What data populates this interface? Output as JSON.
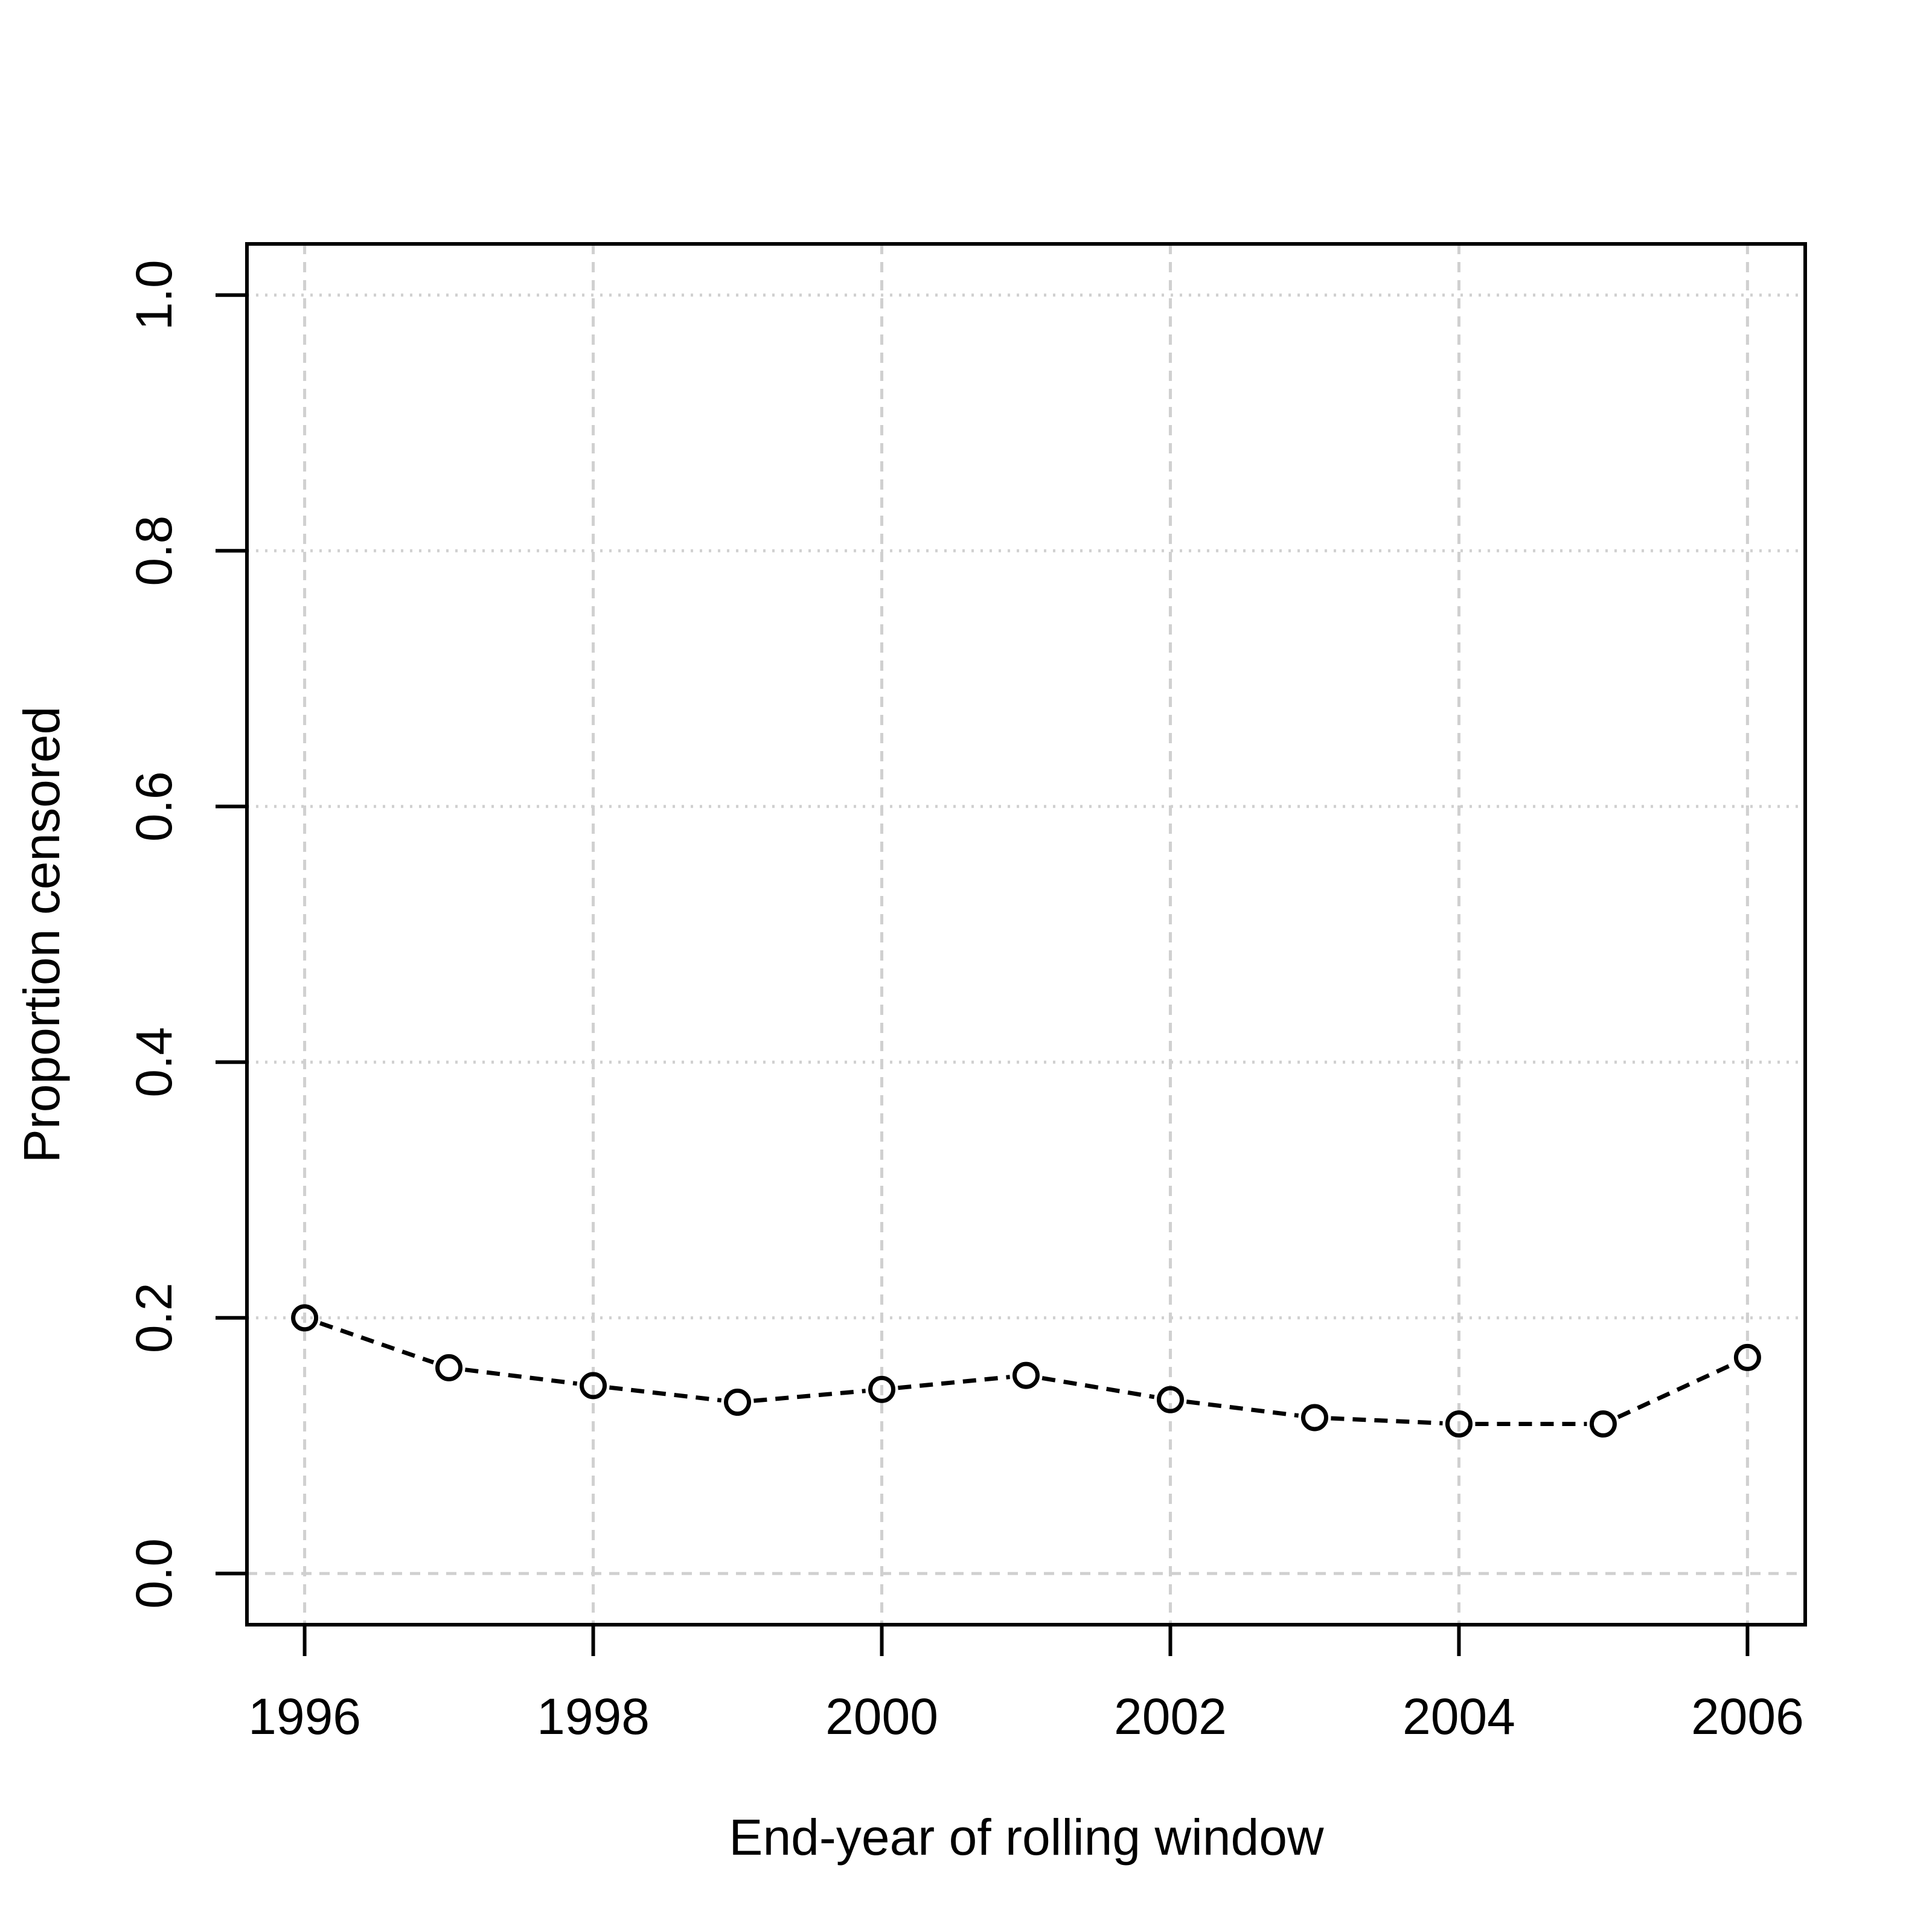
{
  "chart_data": {
    "type": "line",
    "title": "",
    "xlabel": "End-year of rolling window",
    "ylabel": "Proportion censored",
    "x": [
      1996,
      1997,
      1998,
      1999,
      2000,
      2001,
      2002,
      2003,
      2004,
      2005,
      2006
    ],
    "values": [
      0.2,
      0.161,
      0.147,
      0.134,
      0.144,
      0.155,
      0.136,
      0.122,
      0.117,
      0.117,
      0.169
    ],
    "x_ticks": [
      1996,
      1998,
      2000,
      2002,
      2004,
      2006
    ],
    "x_tick_labels": [
      "1996",
      "1998",
      "2000",
      "2002",
      "2004",
      "2006"
    ],
    "y_ticks": [
      0.0,
      0.2,
      0.4,
      0.6,
      0.8,
      1.0
    ],
    "y_tick_labels": [
      "0.0",
      "0.2",
      "0.4",
      "0.6",
      "0.8",
      "1.0"
    ],
    "xlim": [
      1996,
      2006
    ],
    "ylim": [
      0.0,
      1.0
    ],
    "axis_expansion": 0.04,
    "grid": true,
    "legend_position": "none",
    "marker": "open-circle",
    "line_style": "dashed",
    "colors": {
      "line": "#000000",
      "marker": "#000000",
      "grid": "#d0d0d0",
      "axis": "#000000",
      "text": "#000000",
      "background": "#ffffff"
    }
  }
}
